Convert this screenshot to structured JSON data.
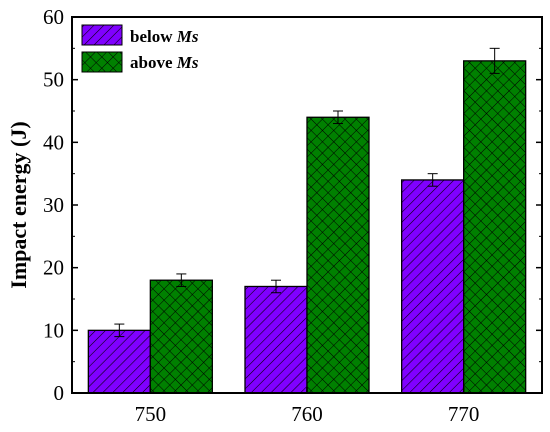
{
  "chart_data": {
    "type": "bar",
    "title": "",
    "xlabel": "",
    "ylabel": "Impact energy (J)",
    "categories": [
      "750",
      "760",
      "770"
    ],
    "ylim": [
      0,
      60
    ],
    "yticks": [
      "0",
      "10",
      "20",
      "30",
      "40",
      "50",
      "60"
    ],
    "series": [
      {
        "name": "below Ms",
        "name_plain": "below ",
        "name_italic": "Ms",
        "color": "#8000ff",
        "pattern": "diagonal-hatch",
        "values": [
          10,
          17,
          34
        ],
        "errors": [
          1,
          1,
          1
        ]
      },
      {
        "name": "above Ms",
        "name_plain": "above ",
        "name_italic": "Ms",
        "color": "#008000",
        "pattern": "cross-hatch",
        "values": [
          18,
          44,
          53
        ],
        "errors": [
          1,
          1,
          2
        ]
      }
    ],
    "legend_position": "top-left",
    "grid": false
  }
}
